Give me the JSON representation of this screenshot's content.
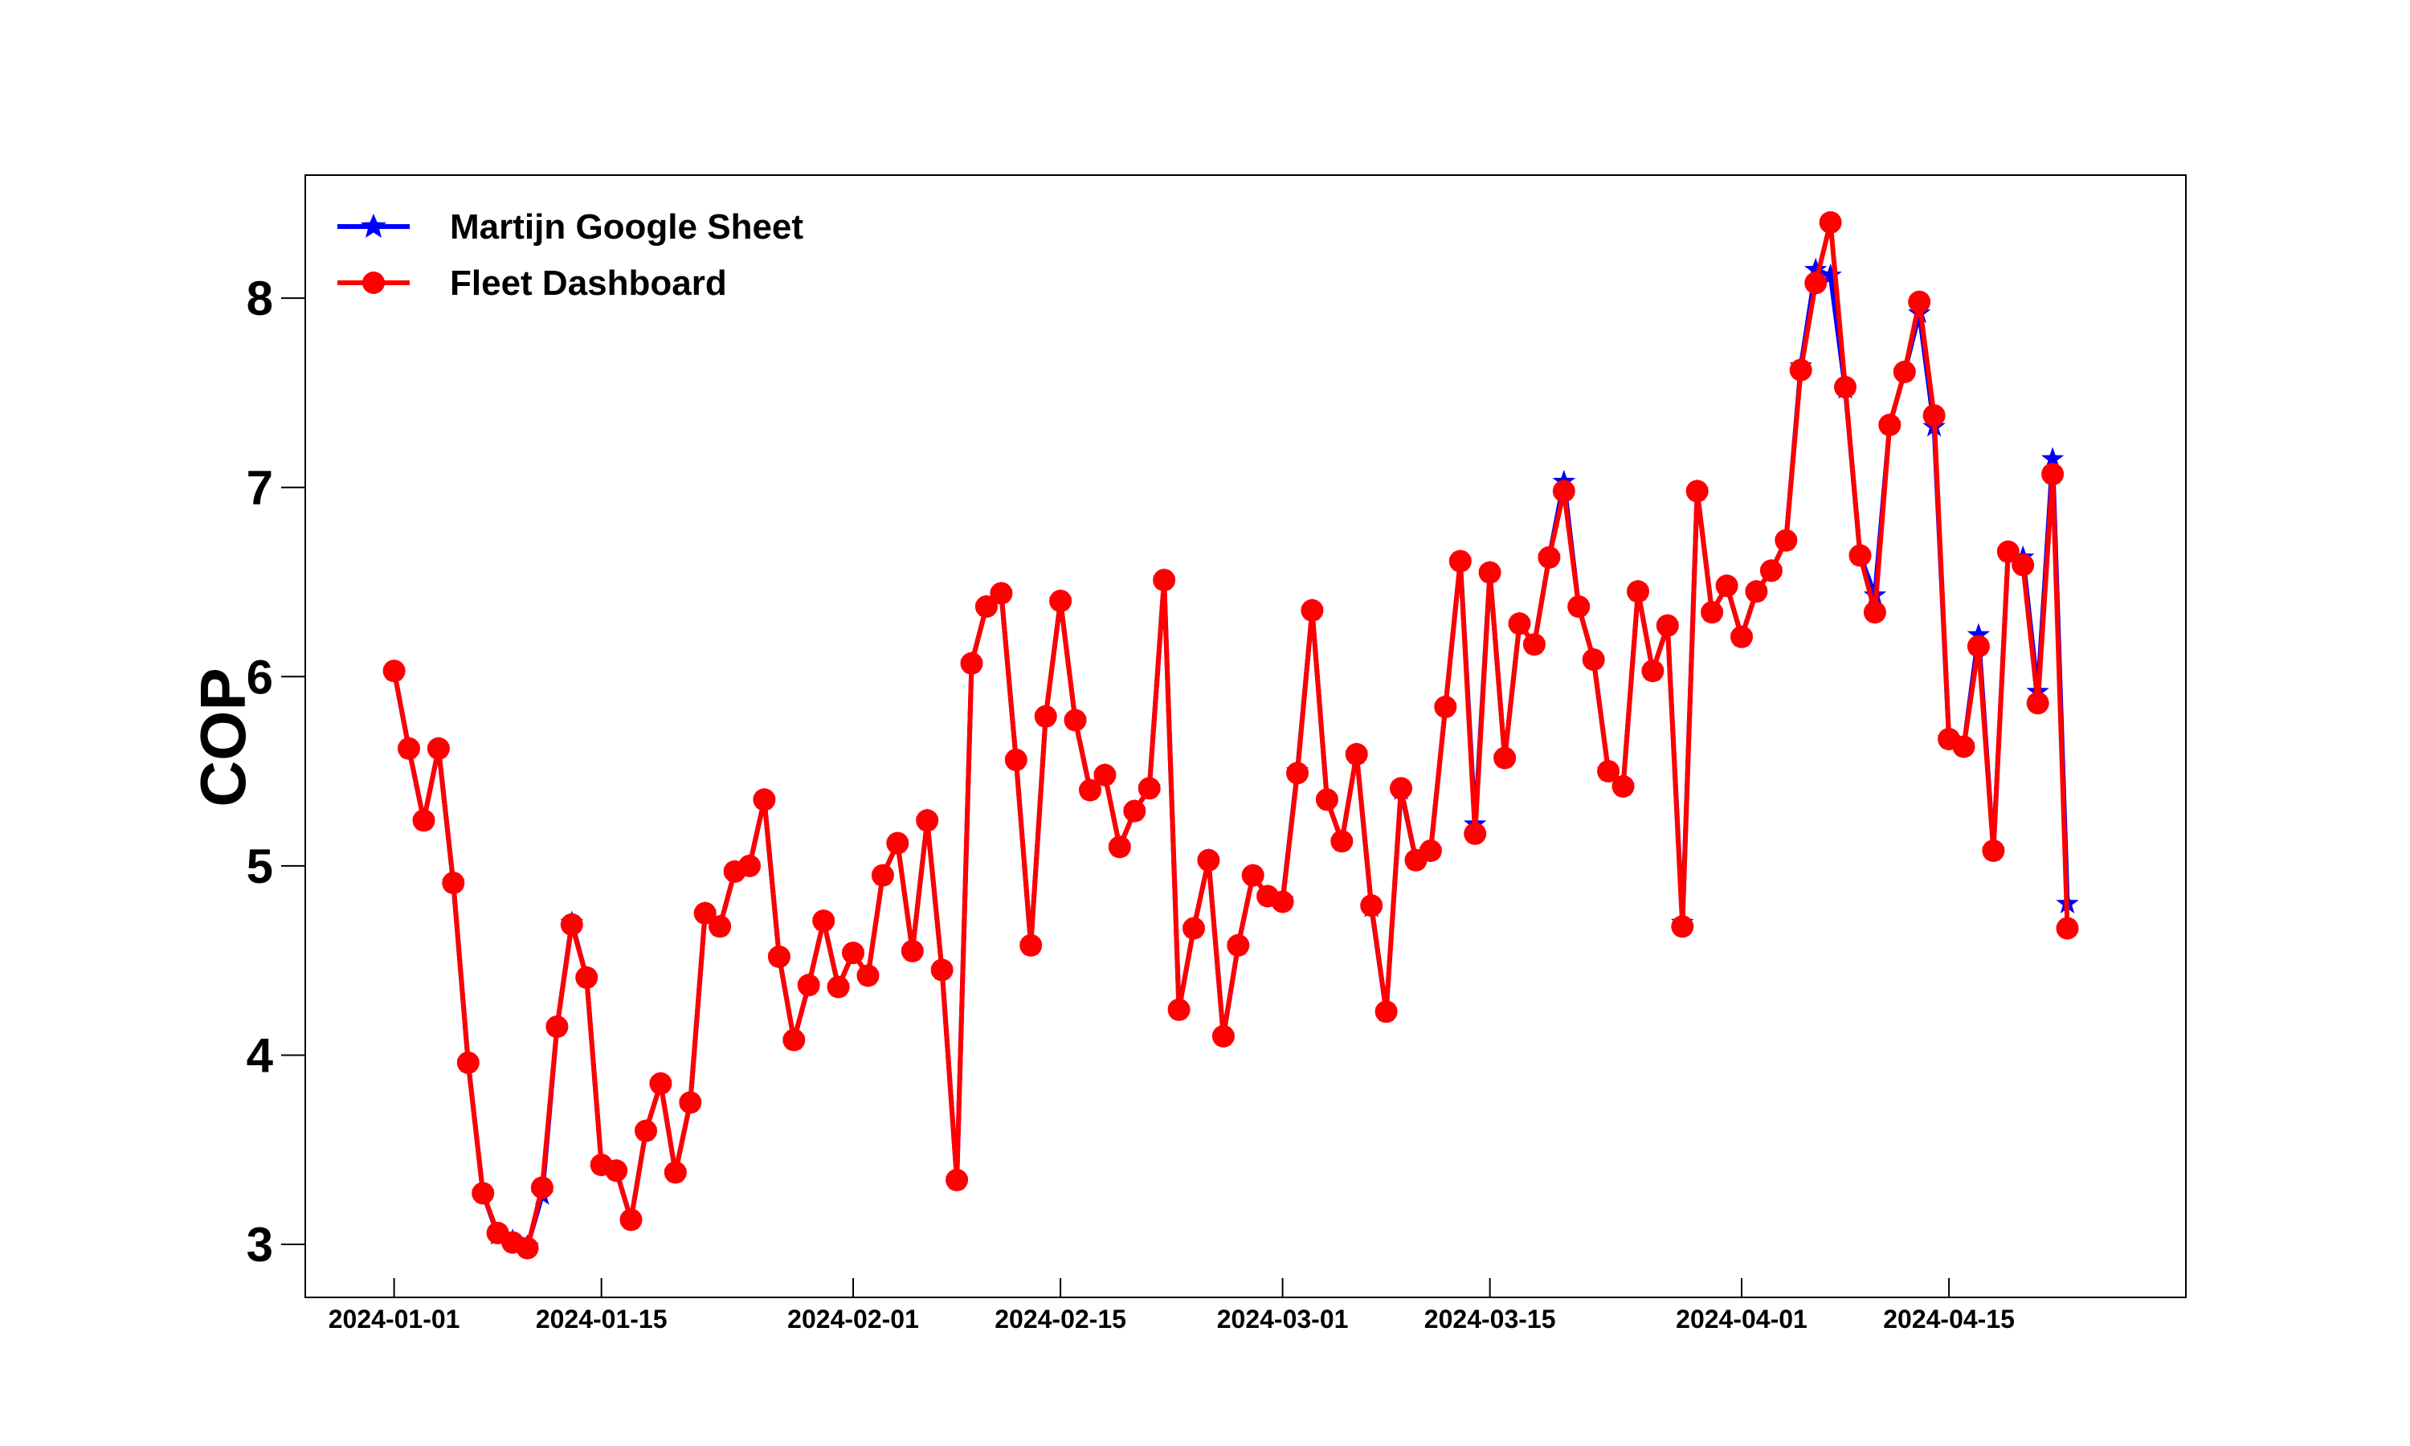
{
  "chart_data": {
    "type": "line",
    "title": "",
    "xlabel": "",
    "ylabel": "COP",
    "x_start": "2024-01-01",
    "x_ticks": [
      "2024-01-01",
      "2024-01-15",
      "2024-02-01",
      "2024-02-15",
      "2024-03-01",
      "2024-03-15",
      "2024-04-01",
      "2024-04-15"
    ],
    "x_range": [
      "2023-12-26",
      "2024-05-01"
    ],
    "y_ticks": [
      3,
      4,
      5,
      6,
      7,
      8
    ],
    "ylim": [
      2.72,
      8.65
    ],
    "grid": false,
    "legend_position": "top-left",
    "series": [
      {
        "name": "Martijn Google Sheet",
        "color": "#0000ff",
        "marker": "star",
        "values": [
          6.03,
          5.62,
          5.24,
          5.62,
          4.91,
          3.96,
          3.27,
          3.05,
          3.02,
          2.99,
          3.26,
          4.15,
          4.7,
          4.41,
          3.42,
          3.39,
          3.13,
          3.6,
          3.85,
          3.38,
          3.75,
          4.75,
          4.68,
          4.97,
          5.0,
          5.35,
          4.52,
          4.08,
          4.37,
          4.71,
          4.36,
          4.54,
          4.42,
          4.95,
          5.12,
          4.55,
          5.24,
          4.45,
          3.34,
          6.07,
          6.37,
          6.44,
          5.56,
          4.58,
          5.79,
          6.4,
          5.77,
          5.4,
          5.48,
          5.1,
          5.29,
          5.41,
          6.51,
          4.24,
          4.67,
          5.03,
          4.1,
          4.58,
          4.95,
          4.84,
          4.82,
          5.5,
          6.35,
          5.35,
          5.13,
          5.59,
          4.78,
          4.23,
          5.4,
          5.03,
          5.08,
          5.84,
          6.61,
          5.22,
          6.55,
          5.57,
          6.28,
          6.17,
          6.63,
          7.03,
          6.37,
          6.09,
          5.5,
          5.42,
          6.45,
          6.03,
          6.27,
          4.7,
          6.98,
          6.34,
          6.48,
          6.21,
          6.45,
          6.56,
          6.72,
          7.64,
          8.15,
          8.12,
          7.52,
          6.64,
          6.43,
          7.33,
          7.61,
          7.92,
          7.32,
          5.67,
          5.63,
          6.22,
          5.08,
          6.66,
          6.63,
          5.92,
          7.15,
          4.8
        ]
      },
      {
        "name": "Fleet Dashboard",
        "color": "#ff0000",
        "marker": "circle",
        "values": [
          6.03,
          5.62,
          5.24,
          5.62,
          4.91,
          3.96,
          3.27,
          3.06,
          3.01,
          2.98,
          3.3,
          4.15,
          4.69,
          4.41,
          3.42,
          3.39,
          3.13,
          3.6,
          3.85,
          3.38,
          3.75,
          4.75,
          4.68,
          4.97,
          5.0,
          5.35,
          4.52,
          4.08,
          4.37,
          4.71,
          4.36,
          4.54,
          4.42,
          4.95,
          5.12,
          4.55,
          5.24,
          4.45,
          3.34,
          6.07,
          6.37,
          6.44,
          5.56,
          4.58,
          5.79,
          6.4,
          5.77,
          5.4,
          5.48,
          5.1,
          5.29,
          5.41,
          6.51,
          4.24,
          4.67,
          5.03,
          4.1,
          4.58,
          4.95,
          4.84,
          4.81,
          5.49,
          6.35,
          5.35,
          5.13,
          5.59,
          4.79,
          4.23,
          5.41,
          5.03,
          5.08,
          5.84,
          6.61,
          5.17,
          6.55,
          5.57,
          6.28,
          6.17,
          6.63,
          6.98,
          6.37,
          6.09,
          5.5,
          5.42,
          6.45,
          6.03,
          6.27,
          4.68,
          6.98,
          6.34,
          6.48,
          6.21,
          6.45,
          6.56,
          6.72,
          7.62,
          8.08,
          8.4,
          7.53,
          6.64,
          6.34,
          7.33,
          7.61,
          7.98,
          7.38,
          5.67,
          5.63,
          6.16,
          5.08,
          6.66,
          6.59,
          5.86,
          7.07,
          4.67
        ]
      }
    ]
  }
}
